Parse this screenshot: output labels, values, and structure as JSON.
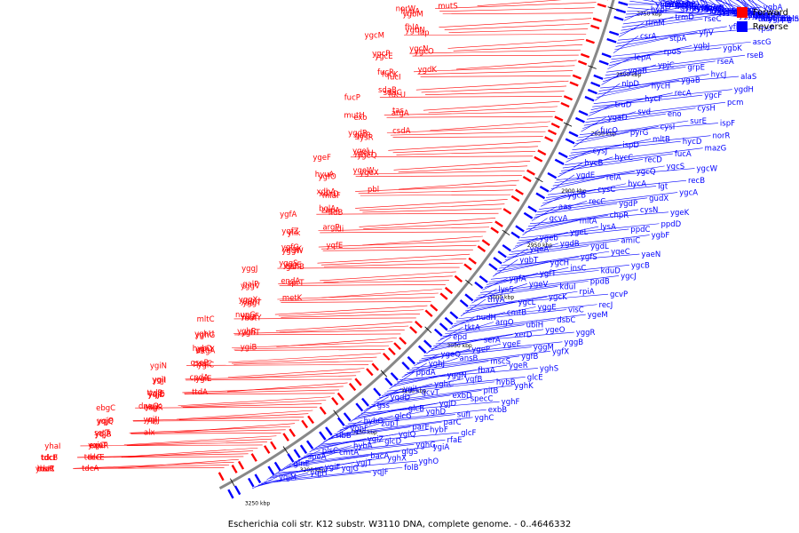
{
  "colors": {
    "forward": "#ff0000",
    "reverse": "#0000ff",
    "backbone": "#888888"
  },
  "legend": {
    "forward_label": "Forward",
    "reverse_label": "Reverse"
  },
  "caption": "Escherichia coli str. K12 substr. W3110 DNA, complete genome. - 0..4646332",
  "ticks": [
    "3250 kbp",
    "3200 kbp",
    "3150 kbp",
    "3100 kbp",
    "3050 kbp",
    "3000 kbp",
    "2950 kbp",
    "2900 kbp",
    "2850 kbp",
    "2800 kbp",
    "2750 kbp",
    "2700 kbp",
    "2650 kbp",
    "2600 kbp"
  ],
  "forward_genes": [
    "yhaC",
    "tdcR",
    "insH",
    "tdcA",
    "tdcB",
    "tdcF",
    "tdcE",
    "tdcG",
    "yhaI",
    "exuR",
    "exuT",
    "yqjC",
    "yqjB",
    "yqjA",
    "sstT",
    "alx",
    "yqjQ",
    "yqjP",
    "yqjJ",
    "yqjI",
    "ebgC",
    "ebgR",
    "yqjK",
    "dnaG",
    "yqjD",
    "yqjE",
    "ttdB",
    "ttdA",
    "yqjI",
    "ygiI",
    "ygiE",
    "cpdA",
    "ygiN",
    "ygiC",
    "qseC",
    "qseB",
    "dkgA",
    "yghY",
    "hybD",
    "ygiB",
    "yghG",
    "yghU",
    "yghT",
    "yghR",
    "mltC",
    "mutY",
    "yggF",
    "nupG",
    "yggT",
    "yggU",
    "yggX",
    "metK",
    "yggV",
    "galP",
    "sprT",
    "endA",
    "yggJ",
    "gshB",
    "yggE",
    "yggS",
    "yggW",
    "argK",
    "ygfG",
    "yqfE",
    "ylik",
    "yqfZ",
    "idi",
    "argP",
    "ygfA",
    "fldB",
    "zapA",
    "bglA",
    "mlaF",
    "xdhD",
    "xdhA",
    "pbl",
    "ygfO",
    "hyuA",
    "ygeX",
    "ygeW",
    "ygeF",
    "ygeQ",
    "ygeH",
    "ygeI",
    "lysR",
    "galR",
    "ygdR",
    "csdA",
    "exo",
    "mutH",
    "argA",
    "tas",
    "fucP",
    "fucU",
    "sdaC",
    "sdaB",
    "fucI",
    "fucK",
    "fucR",
    "ygdK",
    "ygcE",
    "ygcP",
    "ygcO",
    "ygcN",
    "ygcM",
    "iap",
    "ygbN",
    "fhlA",
    "ygbM",
    "hypA",
    "norW",
    "mutS",
    "ascF",
    "srlR",
    "emrB",
    "pphB",
    "ascB",
    "srlA",
    "hypB",
    "srlE",
    "srlB",
    "hypC",
    "srlD",
    "nrdF",
    "gabD",
    "yfiL",
    "yfiM",
    "yfjX",
    "ygaY"
  ],
  "reverse_genes": [
    "yqjM",
    "yqjH",
    "yqjG",
    "yqjF",
    "folB",
    "glnE",
    "ygiF",
    "ygjT",
    "yghX",
    "yghO",
    "speA",
    "cmtA",
    "bacA",
    "glgS",
    "ygiA",
    "plsC",
    "hybA",
    "glcD",
    "yghG",
    "rfaE",
    "ribB",
    "ygiZ",
    "ygiQ",
    "hybF",
    "glcF",
    "yghF",
    "zupT",
    "parE",
    "parC",
    "yghC",
    "hybG",
    "glcG",
    "yghD",
    "sufI",
    "exbB",
    "gss",
    "glcB",
    "ygjD",
    "specC",
    "yghF",
    "ygdD",
    "gcvT",
    "exbD",
    "pitB",
    "yghK",
    "ygiL",
    "yghC",
    "yqfB",
    "hybB",
    "glcE",
    "ppdA",
    "yggN",
    "fbaA",
    "ygeR",
    "yghS",
    "yghJ",
    "ansB",
    "mscS",
    "ygfB",
    "ygfX",
    "ygeQ",
    "ygeP",
    "ygeE",
    "yggM",
    "yggB",
    "epd",
    "serA",
    "xerD",
    "ygeO",
    "yggR",
    "tktA",
    "argO",
    "ubiH",
    "dsbC",
    "ygeM",
    "nudH",
    "cmtB",
    "yggE",
    "visC",
    "recJ",
    "thyA",
    "ygcL",
    "ygcK",
    "rpiA",
    "gcvP",
    "lysS",
    "ygeV",
    "kduI",
    "ppdB",
    "ygcJ",
    "ygfA",
    "ygfT",
    "insC",
    "kduD",
    "ygcB",
    "ygbT",
    "ygcH",
    "ygfS",
    "yqeC",
    "yaeN",
    "yqeA",
    "ygdB",
    "ygdL",
    "amiC",
    "ygbF",
    "ygeb",
    "ygeL",
    "lysA",
    "ppdC",
    "ppdD",
    "gcvA",
    "mltA",
    "chpR",
    "cysN",
    "ygeK",
    "aas",
    "recC",
    "ygdP",
    "gudX",
    "ygcA",
    "ygcB",
    "cysC",
    "hycA",
    "lgt",
    "recB",
    "ygdE",
    "relA",
    "ygcQ",
    "ygcS",
    "ygcW",
    "hycB",
    "hycC",
    "recD",
    "fucA",
    "mazG",
    "cysJ",
    "ispD",
    "mltB",
    "hycD",
    "norR",
    "fucO",
    "pyrG",
    "cysI",
    "surE",
    "ispF",
    "ygaD",
    "svd",
    "eno",
    "cysH",
    "pcm",
    "truD",
    "hycF",
    "recA",
    "ygcF",
    "ygdH",
    "nlpD",
    "hycH",
    "ygaB",
    "hycJ",
    "alaS",
    "yqaB",
    "ypjC",
    "grpE",
    "rseA",
    "rseB",
    "lepA",
    "rpoS",
    "ygbJ",
    "ygbK",
    "ascG",
    "csrA",
    "stpA",
    "yfjV",
    "yfhG",
    "rpsP",
    "rimM",
    "trmD",
    "rseC",
    "lepB",
    "ygbA",
    "hypF",
    "gshA",
    "luxS",
    "ygaU",
    "ygaE",
    "yfjG",
    "yfjK",
    "rluD",
    "yfhB",
    "acpS",
    "yfiE",
    "recO",
    "ypjA",
    "yfjA",
    "pinH",
    "aroF",
    "tyrA",
    "yfiB",
    "yfiJ",
    "ffh",
    "yfiL",
    "yfiK",
    "yfiH",
    "yfiF",
    "rplS",
    "clpB",
    "yfhA",
    "kgtP",
    "era",
    "glnB",
    "yfhR",
    "guaA",
    "guaB",
    "yfgF",
    "tadA",
    "yphE",
    "yfgG",
    "yfhT",
    "uraA",
    "der",
    "upp",
    "ssB",
    "pepB",
    "yfgl",
    "hda",
    "yfgO",
    "ypfJ"
  ]
}
